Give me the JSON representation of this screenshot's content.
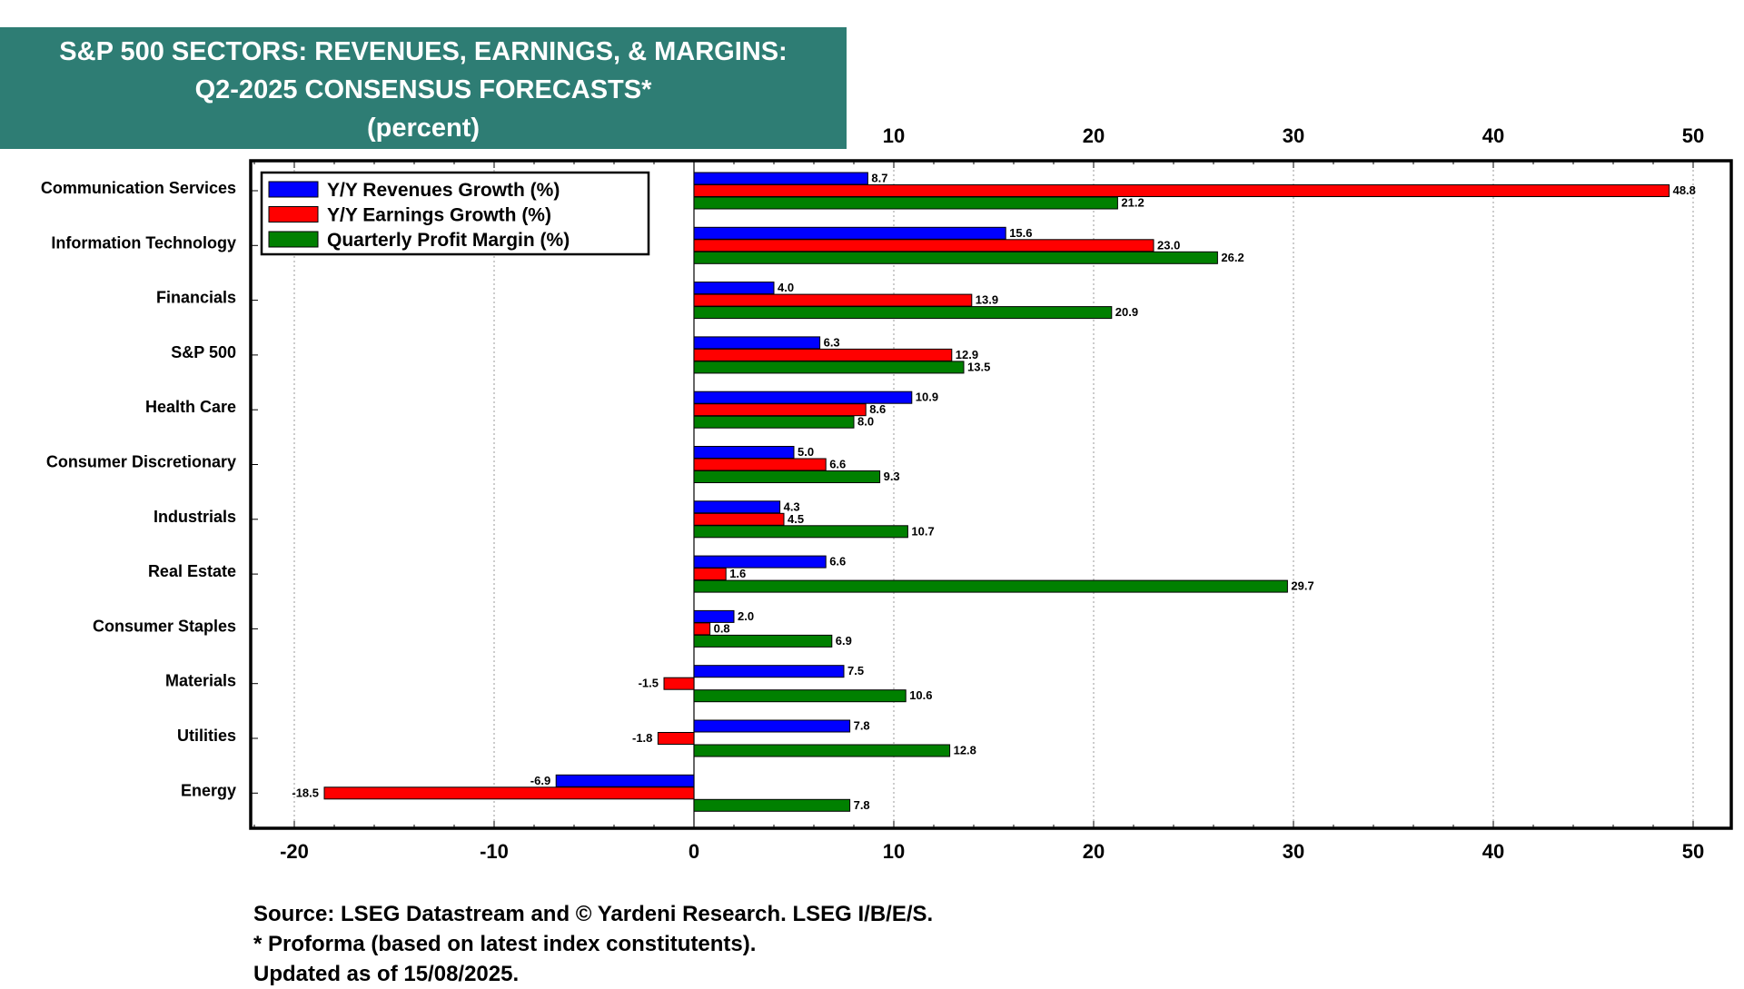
{
  "title": {
    "line1": "S&P 500 SECTORS: REVENUES, EARNINGS, & MARGINS:",
    "line2": "Q2-2025 CONSENSUS FORECASTS*",
    "line3": "(percent)"
  },
  "footer": {
    "source": "Source: LSEG Datastream and © Yardeni Research. LSEG I/B/E/S.",
    "note": "* Proforma (based on latest index constitutents).",
    "updated": "Updated as of 15/08/2025."
  },
  "colors": {
    "revenues": "#0000ff",
    "earnings": "#ff0000",
    "margin": "#008000",
    "title_bg": "#2e7d74"
  },
  "chart_data": {
    "type": "bar",
    "orientation": "horizontal",
    "categories": [
      "Communication Services",
      "Information Technology",
      "Financials",
      "S&P 500",
      "Health Care",
      "Consumer Discretionary",
      "Industrials",
      "Real Estate",
      "Consumer Staples",
      "Materials",
      "Utilities",
      "Energy"
    ],
    "series": [
      {
        "name": "Y/Y Revenues Growth (%)",
        "color": "#0000ff",
        "values": [
          8.7,
          15.6,
          4.0,
          6.3,
          10.9,
          5.0,
          4.3,
          6.6,
          2.0,
          7.5,
          7.8,
          -6.9
        ],
        "labels": [
          "8.7",
          "15.6",
          "4.0",
          "6.3",
          "10.9",
          "5.0",
          "4.3",
          "6.6",
          "2.0",
          "7.5",
          "7.8",
          "-6.9"
        ]
      },
      {
        "name": "Y/Y Earnings Growth (%)",
        "color": "#ff0000",
        "values": [
          48.8,
          23.0,
          13.9,
          12.9,
          8.6,
          6.6,
          4.5,
          1.6,
          0.8,
          -1.5,
          -1.8,
          -18.5
        ],
        "labels": [
          "48.8",
          "23.0",
          "13.9",
          "12.9",
          "8.6",
          "6.6",
          "4.5",
          "1.6",
          "0.8",
          "-1.5",
          "-1.8",
          "-18.5"
        ]
      },
      {
        "name": "Quarterly Profit Margin (%)",
        "color": "#008000",
        "values": [
          21.2,
          26.2,
          20.9,
          13.5,
          8.0,
          9.3,
          10.7,
          29.7,
          6.9,
          10.6,
          12.8,
          7.8
        ],
        "labels": [
          "21.2",
          "26.2",
          "20.9",
          "13.5",
          "8.0",
          "9.3",
          "10.7",
          "29.7",
          "6.9",
          "10.6",
          "12.8",
          "7.8"
        ]
      }
    ],
    "xlim": [
      -22,
      52
    ],
    "x_ticks_bottom": [
      -20,
      -10,
      0,
      10,
      20,
      30,
      40,
      50
    ],
    "x_tick_labels_bottom": [
      "-20",
      "-10",
      "0",
      "10",
      "20",
      "30",
      "40",
      "50"
    ],
    "x_ticks_top": [
      10,
      20,
      30,
      40,
      50
    ],
    "x_tick_labels_top": [
      "10",
      "20",
      "30",
      "40",
      "50"
    ],
    "grid": true,
    "legend_position": "top-left"
  }
}
